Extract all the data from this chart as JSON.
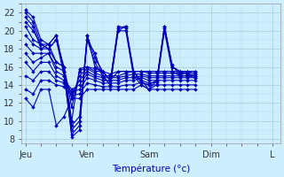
{
  "xlabel": "Température (°c)",
  "bg_color": "#cceeff",
  "grid_color_major": "#aacccc",
  "grid_color_minor": "#bbdddd",
  "line_color": "#0000bb",
  "x_tick_labels": [
    "Jeu",
    "Ven",
    "Sam",
    "Dim",
    "L"
  ],
  "x_tick_positions": [
    0,
    8,
    16,
    24,
    32
  ],
  "ylim": [
    7.5,
    23
  ],
  "xlim": [
    -0.5,
    33
  ],
  "yticks": [
    8,
    10,
    12,
    14,
    16,
    18,
    20,
    22
  ],
  "series": [
    [
      22.3,
      21.5,
      19.0,
      18.5,
      19.5,
      15.5,
      8.2,
      9.0,
      19.5,
      16.0,
      15.5,
      14.5,
      20.3,
      20.5,
      15.5,
      14.5,
      13.5,
      14.5,
      20.5,
      16.0,
      15.5,
      15.2,
      15.0
    ],
    [
      22.0,
      21.0,
      18.5,
      18.0,
      19.0,
      15.0,
      8.5,
      9.5,
      19.0,
      16.5,
      15.0,
      14.0,
      20.0,
      20.0,
      15.0,
      14.0,
      13.5,
      14.0,
      20.0,
      15.5,
      15.0,
      15.0,
      14.8
    ],
    [
      21.5,
      20.5,
      18.0,
      18.5,
      19.5,
      15.5,
      9.0,
      10.0,
      19.5,
      17.0,
      15.5,
      14.5,
      20.5,
      20.3,
      15.5,
      14.2,
      14.0,
      14.5,
      20.3,
      16.0,
      15.5,
      15.2,
      15.0
    ],
    [
      21.0,
      20.0,
      18.5,
      18.0,
      19.0,
      16.0,
      9.5,
      10.5,
      19.0,
      17.5,
      15.0,
      14.0,
      20.0,
      20.5,
      15.0,
      14.5,
      14.2,
      14.3,
      20.5,
      16.2,
      15.0,
      15.5,
      15.2
    ],
    [
      20.5,
      19.0,
      18.5,
      18.5,
      16.5,
      16.0,
      10.0,
      15.8,
      16.0,
      15.8,
      15.5,
      14.5,
      15.5,
      15.5,
      15.5,
      15.5,
      15.5,
      15.5,
      15.5,
      15.5,
      15.5,
      15.5,
      15.5
    ],
    [
      19.5,
      18.5,
      18.0,
      18.0,
      16.5,
      16.0,
      11.5,
      15.5,
      16.0,
      15.5,
      15.5,
      15.2,
      15.5,
      15.5,
      15.5,
      15.5,
      15.5,
      15.5,
      15.5,
      15.5,
      15.5,
      15.5,
      15.5
    ],
    [
      18.5,
      17.5,
      17.5,
      17.5,
      16.0,
      15.5,
      12.5,
      15.0,
      15.8,
      15.3,
      15.0,
      15.0,
      15.0,
      15.3,
      15.5,
      15.5,
      15.3,
      15.3,
      15.3,
      15.3,
      15.3,
      15.3,
      15.3
    ],
    [
      17.5,
      16.5,
      17.0,
      17.5,
      15.5,
      15.0,
      13.0,
      14.5,
      15.5,
      15.0,
      14.8,
      14.8,
      14.8,
      15.0,
      15.2,
      15.2,
      15.0,
      15.0,
      15.0,
      15.0,
      15.0,
      15.0,
      15.0
    ],
    [
      16.5,
      15.5,
      16.5,
      16.5,
      15.0,
      14.5,
      13.5,
      14.0,
      15.2,
      14.8,
      14.5,
      14.5,
      14.5,
      14.8,
      14.8,
      15.0,
      14.8,
      14.8,
      14.8,
      14.8,
      14.8,
      14.8,
      14.8
    ],
    [
      15.0,
      14.5,
      15.5,
      15.5,
      14.5,
      14.2,
      13.2,
      13.5,
      14.8,
      14.5,
      14.2,
      14.2,
      14.2,
      14.5,
      14.5,
      14.8,
      14.5,
      14.5,
      14.5,
      14.5,
      14.5,
      14.5,
      14.5
    ],
    [
      13.5,
      13.0,
      14.5,
      14.5,
      14.0,
      13.8,
      12.8,
      13.0,
      14.2,
      14.0,
      13.8,
      13.8,
      13.8,
      14.0,
      14.0,
      14.3,
      14.0,
      14.0,
      14.0,
      14.0,
      14.0,
      14.0,
      14.0
    ],
    [
      12.5,
      11.5,
      13.5,
      13.5,
      9.5,
      10.5,
      12.5,
      12.5,
      13.5,
      13.5,
      13.5,
      13.5,
      13.5,
      13.5,
      13.5,
      14.0,
      13.5,
      13.5,
      13.5,
      13.5,
      13.5,
      13.5,
      13.5
    ]
  ],
  "x_values": [
    0,
    1,
    2,
    3,
    4,
    5,
    6,
    7,
    8,
    9,
    10,
    11,
    12,
    13,
    14,
    15,
    16,
    17,
    18,
    19,
    20,
    21,
    22
  ]
}
